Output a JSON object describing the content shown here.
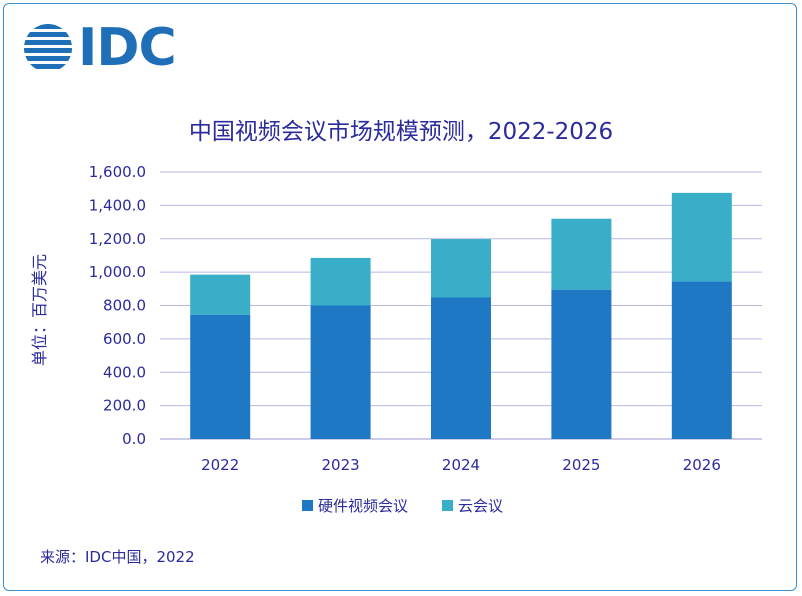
{
  "logo": {
    "text": "IDC"
  },
  "source": "来源：IDC中国，2022",
  "colors": {
    "hardware": "#1f78c4",
    "cloud": "#38aec8",
    "text": "#2b2b9c",
    "grid": "#b8b8e0"
  },
  "chart_data": {
    "type": "bar",
    "stacked": true,
    "title": "中国视频会议市场规模预测，2022-2026",
    "ylabel": "单位：百万美元",
    "xlabel": "",
    "categories": [
      "2022",
      "2023",
      "2024",
      "2025",
      "2026"
    ],
    "series": [
      {
        "name": "硬件视频会议",
        "values": [
          745,
          800,
          848,
          895,
          945
        ]
      },
      {
        "name": "云会议",
        "values": [
          240,
          285,
          350,
          425,
          530
        ]
      }
    ],
    "ylim": [
      0,
      1600
    ],
    "yticks": [
      "0.0",
      "200.0",
      "400.0",
      "600.0",
      "800.0",
      "1,000.0",
      "1,200.0",
      "1,400.0",
      "1,600.0"
    ],
    "grid": true,
    "legend": "bottom"
  }
}
